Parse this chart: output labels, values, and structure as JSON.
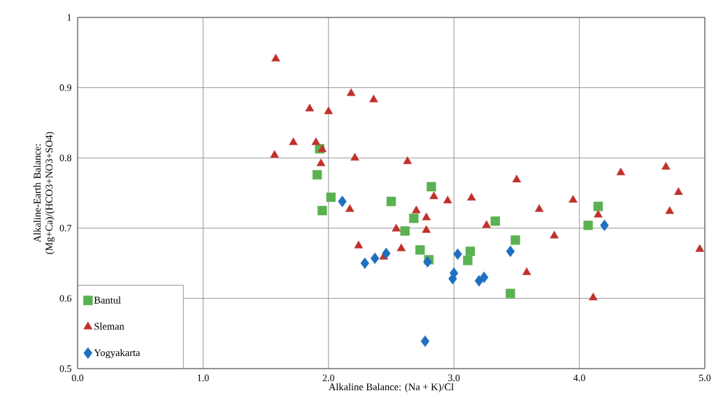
{
  "chart_data": {
    "type": "scatter",
    "xlabel": "Alkaline Balance: (Na + K)/Cl",
    "ylabel": "Alkaline-Earth Balance: (Mg+Ca)/(HCO3+NO3+SO4)",
    "xlim": [
      0,
      5
    ],
    "ylim": [
      0.5,
      1
    ],
    "xticks": [
      {
        "value": 0,
        "label": "0.0"
      },
      {
        "value": 1,
        "label": "1.0"
      },
      {
        "value": 2,
        "label": "2.0"
      },
      {
        "value": 3,
        "label": "3.0"
      },
      {
        "value": 4,
        "label": "4.0"
      },
      {
        "value": 5,
        "label": "5.0"
      }
    ],
    "yticks": [
      0.5,
      0.6,
      0.7,
      0.8,
      0.9,
      1
    ],
    "grid": true,
    "legend": "bottom left",
    "series": [
      {
        "name": "Bantul",
        "color": "#5ab150",
        "marker": "square",
        "x": [
          1.93,
          1.91,
          1.95,
          2.02,
          2.5,
          2.82,
          2.68,
          2.61,
          2.73,
          2.8,
          3.13,
          3.11,
          3.33,
          3.49,
          3.45,
          4.07,
          4.15
        ],
        "values": [
          0.813,
          0.776,
          0.725,
          0.744,
          0.738,
          0.759,
          0.714,
          0.696,
          0.669,
          0.655,
          0.667,
          0.654,
          0.71,
          0.683,
          0.607,
          0.704,
          0.731
        ]
      },
      {
        "name": "Sleman",
        "color": "#c0312b",
        "marker": "triangle",
        "x": [
          1.58,
          2.18,
          2.36,
          1.85,
          2.0,
          1.72,
          1.9,
          1.95,
          1.57,
          2.21,
          2.63,
          1.94,
          2.17,
          2.84,
          2.95,
          3.14,
          2.7,
          2.78,
          2.78,
          2.54,
          2.24,
          2.58,
          2.44,
          3.5,
          3.68,
          3.95,
          3.26,
          3.8,
          3.58,
          4.11,
          4.15,
          4.33,
          4.69,
          4.79,
          4.72,
          4.96
        ],
        "values": [
          0.941,
          0.892,
          0.883,
          0.87,
          0.866,
          0.822,
          0.822,
          0.812,
          0.804,
          0.8,
          0.795,
          0.792,
          0.727,
          0.745,
          0.739,
          0.743,
          0.725,
          0.715,
          0.697,
          0.699,
          0.675,
          0.671,
          0.659,
          0.769,
          0.727,
          0.74,
          0.704,
          0.689,
          0.637,
          0.601,
          0.719,
          0.779,
          0.787,
          0.751,
          0.724,
          0.67
        ]
      },
      {
        "name": "Yogyakarta",
        "color": "#1f6fc0",
        "marker": "diamond",
        "x": [
          2.11,
          2.29,
          2.37,
          2.46,
          2.79,
          3.03,
          3.0,
          2.99,
          3.2,
          3.24,
          2.77,
          3.45,
          4.2
        ],
        "values": [
          0.738,
          0.65,
          0.657,
          0.664,
          0.652,
          0.663,
          0.636,
          0.628,
          0.625,
          0.63,
          0.539,
          0.667,
          0.704
        ]
      }
    ]
  }
}
